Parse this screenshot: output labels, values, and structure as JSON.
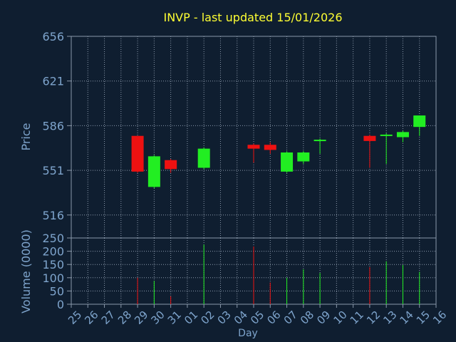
{
  "chart_data": [
    {
      "type": "candlestick",
      "title": "INVP - last updated 15/01/2026",
      "xlabel": "",
      "ylabel": "Price",
      "ylim": [
        498,
        656
      ],
      "yticks": [
        656,
        621,
        586,
        551,
        516
      ],
      "grid": true,
      "categories": [
        "25",
        "26",
        "27",
        "28",
        "29",
        "30",
        "31",
        "01",
        "02",
        "03",
        "04",
        "05",
        "06",
        "07",
        "08",
        "09",
        "10",
        "11",
        "12",
        "13",
        "14",
        "15",
        "16"
      ],
      "candles": [
        {
          "day": "29",
          "open": 578,
          "close": 550,
          "high": 578,
          "low": 549
        },
        {
          "day": "30",
          "open": 538,
          "close": 562,
          "high": 563,
          "low": 537
        },
        {
          "day": "31",
          "open": 559,
          "close": 552,
          "high": 560,
          "low": 549
        },
        {
          "day": "02",
          "open": 553,
          "close": 568,
          "high": 569,
          "low": 552
        },
        {
          "day": "05",
          "open": 571,
          "close": 568,
          "high": 572,
          "low": 557
        },
        {
          "day": "06",
          "open": 571,
          "close": 567,
          "high": 573,
          "low": 564
        },
        {
          "day": "07",
          "open": 550,
          "close": 565,
          "high": 566,
          "low": 549
        },
        {
          "day": "08",
          "open": 558,
          "close": 565,
          "high": 566,
          "low": 556
        },
        {
          "day": "09",
          "open": 574,
          "close": 575,
          "high": 576,
          "low": 564
        },
        {
          "day": "12",
          "open": 578,
          "close": 574,
          "high": 579,
          "low": 553
        },
        {
          "day": "13",
          "open": 578,
          "close": 579,
          "high": 580,
          "low": 556
        },
        {
          "day": "14",
          "open": 577,
          "close": 581,
          "high": 582,
          "low": 573
        },
        {
          "day": "15",
          "open": 585,
          "close": 594,
          "high": 594,
          "low": 578
        }
      ],
      "colors": {
        "up": "#22ee22",
        "down": "#ee1111"
      }
    },
    {
      "type": "bar",
      "xlabel": "Day",
      "ylabel": "Volume (0000)",
      "ylim": [
        0,
        250
      ],
      "yticks": [
        250,
        200,
        150,
        100,
        50,
        0
      ],
      "categories": [
        "25",
        "26",
        "27",
        "28",
        "29",
        "30",
        "31",
        "01",
        "02",
        "03",
        "04",
        "05",
        "06",
        "07",
        "08",
        "09",
        "10",
        "11",
        "12",
        "13",
        "14",
        "15",
        "16"
      ],
      "bars": [
        {
          "day": "29",
          "value": 100,
          "direction": "down"
        },
        {
          "day": "30",
          "value": 88,
          "direction": "up"
        },
        {
          "day": "31",
          "value": 30,
          "direction": "down"
        },
        {
          "day": "02",
          "value": 225,
          "direction": "up"
        },
        {
          "day": "05",
          "value": 218,
          "direction": "down"
        },
        {
          "day": "06",
          "value": 82,
          "direction": "down"
        },
        {
          "day": "07",
          "value": 100,
          "direction": "up"
        },
        {
          "day": "08",
          "value": 132,
          "direction": "up"
        },
        {
          "day": "09",
          "value": 118,
          "direction": "up"
        },
        {
          "day": "12",
          "value": 140,
          "direction": "down"
        },
        {
          "day": "13",
          "value": 162,
          "direction": "up"
        },
        {
          "day": "14",
          "value": 148,
          "direction": "up"
        },
        {
          "day": "15",
          "value": 122,
          "direction": "up"
        }
      ]
    }
  ],
  "colors": {
    "background": "#0f1e30",
    "axis_text": "#7ea4cc",
    "title": "#ffff33",
    "frame": "#8a98aa",
    "grid": "#8a98aa"
  }
}
